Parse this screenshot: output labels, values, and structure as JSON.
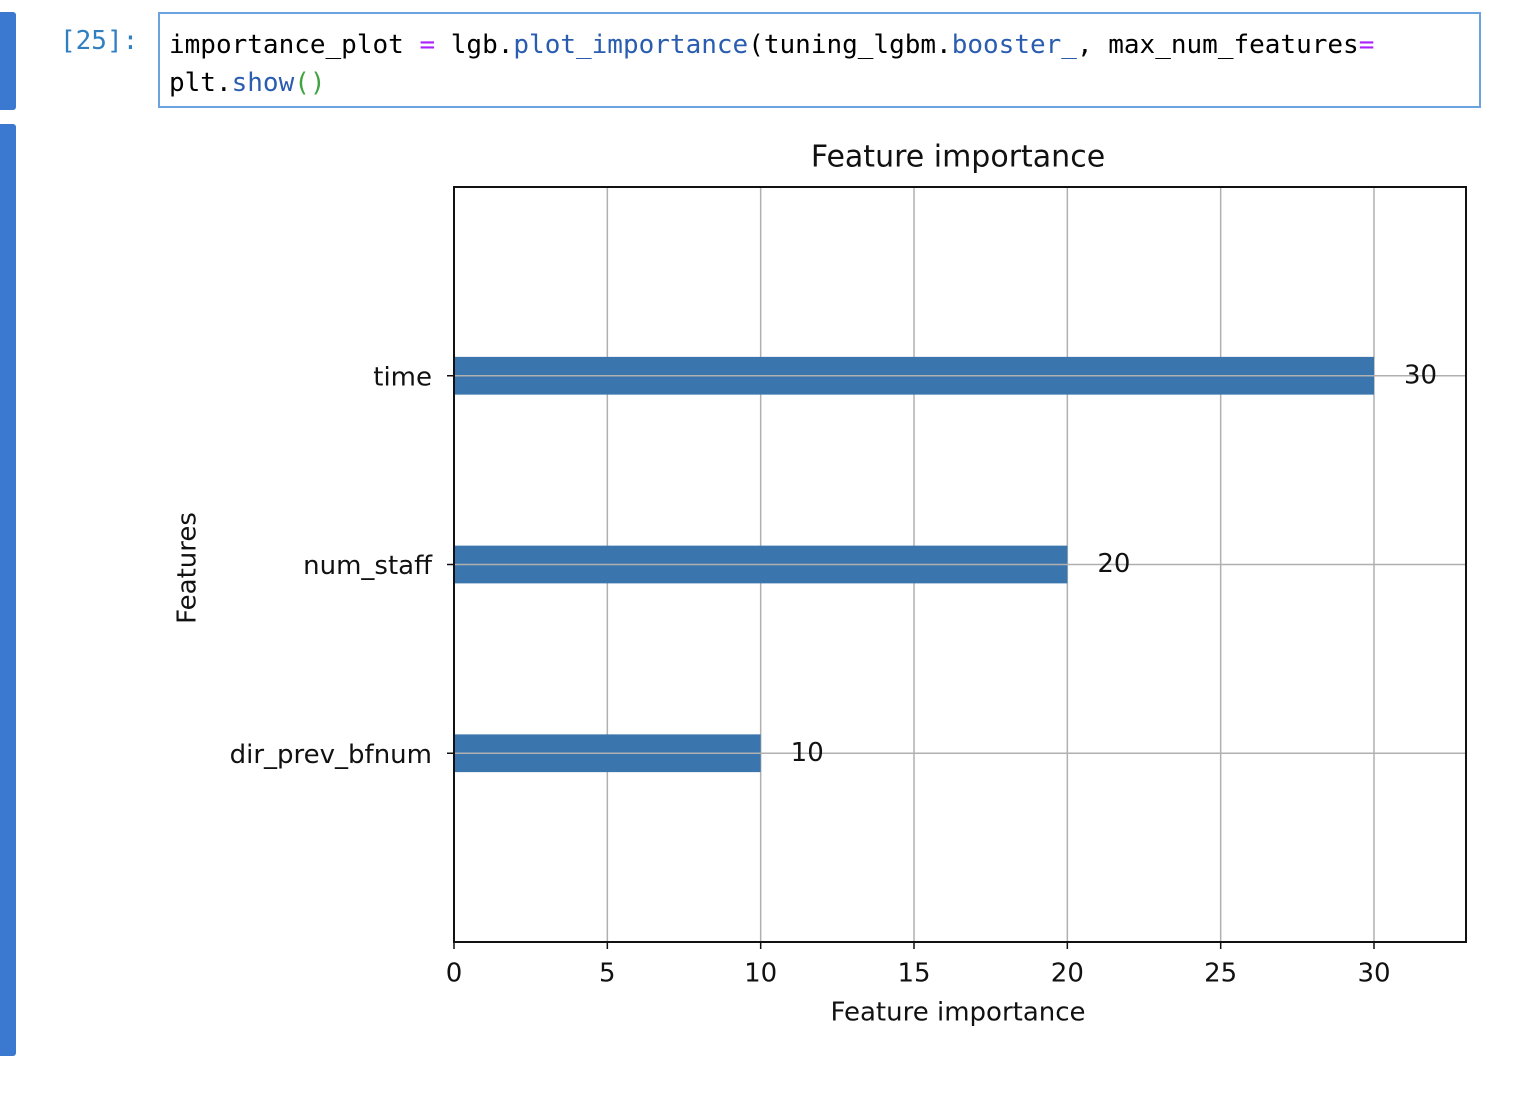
{
  "cell": {
    "prompt": "[25]:",
    "code": [
      [
        {
          "text": "importance_plot ",
          "color": "#000000"
        },
        {
          "text": "=",
          "color": "#aa22ff"
        },
        {
          "text": " lgb.",
          "color": "#000000"
        },
        {
          "text": "plot_importance",
          "color": "#2a5db0"
        },
        {
          "text": "(tuning_lgbm.",
          "color": "#000000"
        },
        {
          "text": "booster_",
          "color": "#2a5db0"
        },
        {
          "text": ", max_num_features",
          "color": "#000000"
        },
        {
          "text": "=",
          "color": "#aa22ff"
        }
      ],
      [
        {
          "text": "plt.",
          "color": "#000000"
        },
        {
          "text": "show",
          "color": "#2a5db0"
        },
        {
          "text": "()",
          "color": "#3fa33f"
        }
      ]
    ]
  },
  "chart_data": {
    "type": "barh",
    "title": "Feature importance",
    "xlabel": "Feature importance",
    "ylabel": "Features",
    "categories": [
      "time",
      "num_staff",
      "dir_prev_bfnum"
    ],
    "values": [
      30,
      20,
      10
    ],
    "color": "#3a75ad",
    "xlim": [
      0,
      33
    ],
    "xticks": [
      0,
      5,
      10,
      15,
      20,
      25,
      30
    ],
    "grid": true
  }
}
